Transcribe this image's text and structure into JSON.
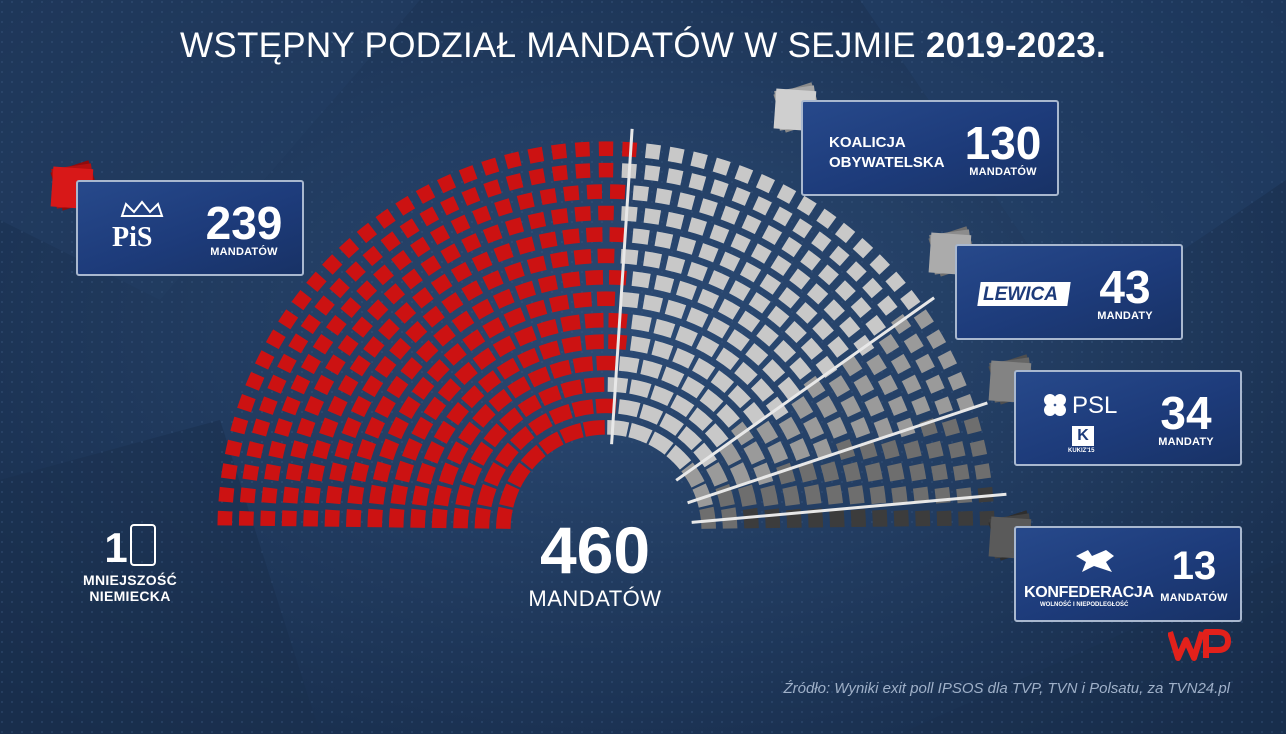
{
  "title": {
    "prefix": "WSTĘPNY PODZIAŁ MANDATÓW W SEJMIE ",
    "years": "2019-2023."
  },
  "total": {
    "value": "460",
    "label": "MANDATÓW"
  },
  "minority": {
    "value": "1",
    "label_line1": "MNIEJSZOŚĆ",
    "label_line2": "NIEMIECKA"
  },
  "parties": [
    {
      "id": "pis",
      "logo_text": "PiS",
      "seats": "239",
      "unit": "MANDATÓW",
      "color": "#cc1212"
    },
    {
      "id": "ko",
      "logo_line1": "KOALICJA",
      "logo_line2": "OBYWATELSKA",
      "seats": "130",
      "unit": "MANDATÓW",
      "color": "#c8c8c8"
    },
    {
      "id": "lewica",
      "logo_text": "LEWICA",
      "seats": "43",
      "unit": "MANDATY",
      "color": "#9a9a9a"
    },
    {
      "id": "psl",
      "logo_text": "PSL",
      "logo_sub": "KUKIZ'15",
      "seats": "34",
      "unit": "MANDATY",
      "color": "#6e6e6e"
    },
    {
      "id": "konfederacja",
      "logo_text": "KONFEDERACJA",
      "logo_sub": "WOLNOŚĆ I NIEPODLEGŁOŚĆ",
      "seats": "13",
      "unit": "MANDATÓW",
      "color": "#3c3c3c"
    }
  ],
  "source": "Źródło: Wyniki exit poll IPSOS dla TVP, TVN i Polsatu, za TVN24.pl",
  "brand": "WP",
  "chart_data": {
    "type": "parliament",
    "title": "WSTĘPNY PODZIAŁ MANDATÓW W SEJMIE 2019-2023.",
    "total_seats": 460,
    "categories": [
      "PiS",
      "Koalicja Obywatelska",
      "Lewica",
      "PSL-Kukiz'15",
      "Konfederacja",
      "Mniejszość Niemiecka"
    ],
    "values": [
      239,
      130,
      43,
      34,
      13,
      1
    ],
    "colors": [
      "#cc1212",
      "#c8c8c8",
      "#9a9a9a",
      "#6e6e6e",
      "#3c3c3c",
      "#ffffff"
    ]
  }
}
